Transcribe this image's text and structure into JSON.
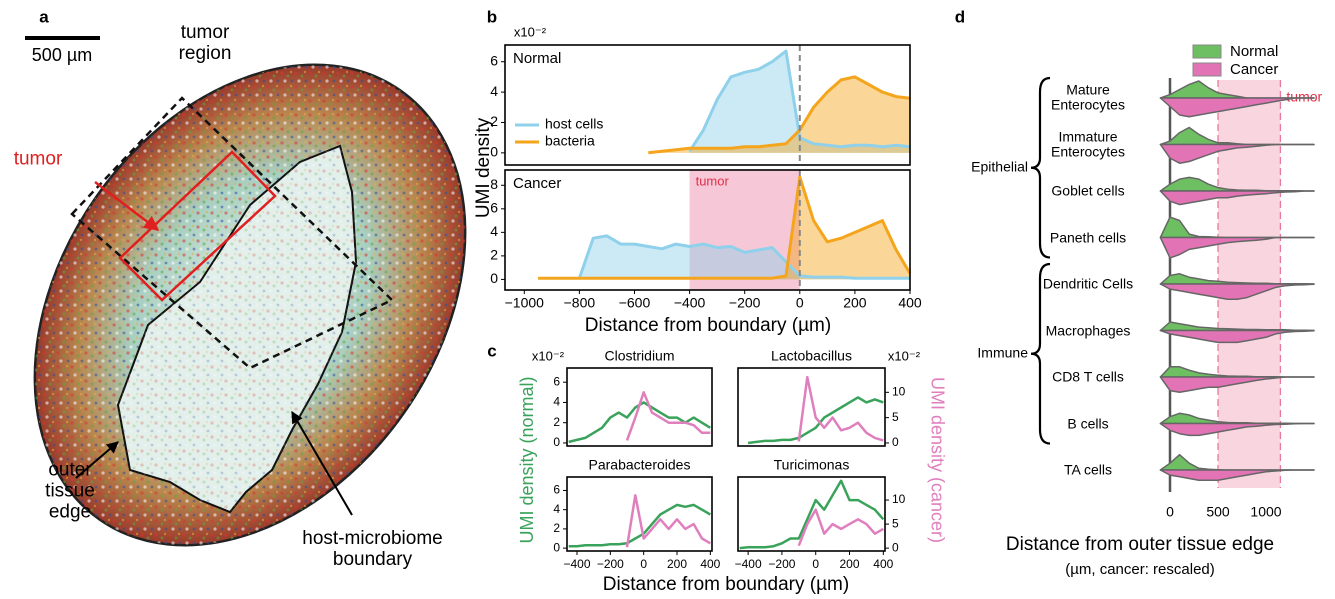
{
  "panel_labels": [
    "a",
    "b",
    "c",
    "d"
  ],
  "image_panel": {
    "scale_bar": "500 µm",
    "tumor_region": "tumor region",
    "tumor": "tumor",
    "outer_edge": "outer tissue edge",
    "boundary": "host-microbiome boundary"
  },
  "chart_data": [
    {
      "type": "area",
      "label": "Normal",
      "ylabel": "UMI density",
      "y_multiplier": "x10⁻²",
      "legend": "lower left",
      "xlim": [
        -1070,
        400
      ],
      "ylim": [
        -0.8,
        7.1
      ],
      "yticks": [
        0,
        2,
        4,
        6
      ],
      "vline": 0,
      "x": [
        -1000,
        -950,
        -900,
        -850,
        -800,
        -750,
        -700,
        -650,
        -600,
        -550,
        -500,
        -450,
        -400,
        -350,
        -300,
        -250,
        -200,
        -150,
        -100,
        -50,
        0,
        50,
        100,
        150,
        200,
        250,
        300,
        350,
        400
      ],
      "series": [
        {
          "name": "host cells",
          "color": "#8fd0ea",
          "values": [
            null,
            null,
            null,
            null,
            null,
            null,
            null,
            null,
            null,
            null,
            null,
            null,
            0.1,
            1.5,
            3.5,
            5,
            5.3,
            5.5,
            6,
            6.7,
            1,
            0.6,
            0.5,
            0.4,
            0.5,
            0.5,
            0.4,
            0.5,
            0.4
          ]
        },
        {
          "name": "bacteria",
          "color": "#f4a51c",
          "values": [
            null,
            null,
            null,
            null,
            null,
            null,
            null,
            null,
            null,
            0,
            0.1,
            0.2,
            0.3,
            0.3,
            0.3,
            0.3,
            0.4,
            0.4,
            0.5,
            0.6,
            1.5,
            3,
            4,
            4.8,
            5,
            4.5,
            4,
            3.7,
            3.6
          ]
        }
      ]
    },
    {
      "type": "area",
      "label": "Cancer",
      "xlabel": "Distance from boundary (µm)",
      "xlim": [
        -1070,
        400
      ],
      "ylim": [
        -0.9,
        9.3
      ],
      "yticks": [
        0,
        2,
        4,
        6,
        8
      ],
      "vline": 0,
      "xticks": [
        {
          "value": -1000,
          "label": "−1000"
        },
        {
          "value": -800,
          "label": "−800"
        },
        {
          "value": -600,
          "label": "−600"
        },
        {
          "value": -400,
          "label": "−400"
        },
        {
          "value": -200,
          "label": "−200"
        },
        0,
        200,
        400
      ],
      "shade": {
        "x": [
          -400,
          0
        ],
        "label": "tumor",
        "color": "#f6c7d6"
      },
      "x": [
        -1000,
        -950,
        -900,
        -850,
        -800,
        -750,
        -700,
        -650,
        -600,
        -550,
        -500,
        -450,
        -400,
        -350,
        -300,
        -250,
        -200,
        -150,
        -100,
        -50,
        0,
        50,
        100,
        150,
        200,
        250,
        300,
        350,
        400
      ],
      "series": [
        {
          "name": "host cells",
          "color": "#8fd0ea",
          "values": [
            null,
            null,
            null,
            null,
            0.1,
            3.5,
            3.7,
            3,
            3,
            2.8,
            2.6,
            3,
            2.8,
            3,
            2.7,
            2.8,
            2.3,
            2.5,
            2.7,
            1.5,
            0.3,
            0.2,
            0.2,
            0.2,
            0.1,
            0.1,
            0.1,
            0.1,
            0.1
          ]
        },
        {
          "name": "bacteria",
          "color": "#f4a51c",
          "values": [
            null,
            0.1,
            0.1,
            0.1,
            0.1,
            0.1,
            0.1,
            0.1,
            0.1,
            0.1,
            0.1,
            0.1,
            0.1,
            0.1,
            0.1,
            0.1,
            0.1,
            0.1,
            0.1,
            0.3,
            8.7,
            5,
            3.2,
            3.5,
            4,
            4.5,
            5,
            2.5,
            0.5
          ]
        }
      ]
    },
    {
      "type": "line",
      "title": "Clostridium",
      "ylabel": "UMI density (normal)",
      "y2label": "UMI density (cancer)",
      "y_multiplier": "x10⁻²",
      "y2_multiplier": "x10⁻²",
      "xlim": [
        -460,
        410
      ],
      "ylim": [
        -0.3,
        7.4
      ],
      "y2lim": [
        -0.6,
        14.8
      ],
      "yticks": [
        0,
        2,
        4,
        6
      ],
      "x": [
        -500,
        -450,
        -400,
        -350,
        -300,
        -250,
        -200,
        -150,
        -100,
        -50,
        0,
        50,
        100,
        150,
        200,
        250,
        300,
        350,
        400
      ],
      "series": [
        {
          "color": "#3aa35b",
          "values": [
            null,
            0.1,
            0.3,
            0.5,
            1,
            1.5,
            2.5,
            3,
            2.5,
            3.5,
            4,
            3.5,
            3,
            2.5,
            2.5,
            2,
            2.5,
            2,
            1.5
          ]
        },
        {
          "color": "#e07fbd",
          "axis": "y2",
          "values": [
            null,
            null,
            null,
            null,
            null,
            null,
            null,
            null,
            0.5,
            5,
            10,
            6,
            5,
            4,
            4,
            4,
            3.5,
            2,
            2
          ]
        }
      ]
    },
    {
      "type": "line",
      "title": "Lactobacillus",
      "xlim": [
        -460,
        410
      ],
      "ylim": [
        -0.3,
        7.4
      ],
      "y2lim": [
        -0.6,
        14.8
      ],
      "y2ticks": [
        0,
        5,
        10
      ],
      "x": [
        -500,
        -450,
        -400,
        -350,
        -300,
        -250,
        -200,
        -150,
        -100,
        -50,
        0,
        50,
        100,
        150,
        200,
        250,
        300,
        350,
        400
      ],
      "series": [
        {
          "color": "#3aa35b",
          "values": [
            null,
            null,
            0,
            0.1,
            0.2,
            0.2,
            0.3,
            0.3,
            0.5,
            1,
            1.5,
            2.5,
            3,
            3.5,
            4,
            4.5,
            4,
            4.3,
            4
          ]
        },
        {
          "color": "#e07fbd",
          "axis": "y2",
          "values": [
            null,
            null,
            null,
            null,
            null,
            null,
            null,
            null,
            0.3,
            13,
            5,
            3,
            5,
            2.5,
            3,
            4,
            2,
            1,
            0.5
          ]
        }
      ]
    },
    {
      "type": "line",
      "title": "Parabacteroides",
      "xlabel": "Distance from boundary (µm)",
      "xlim": [
        -460,
        410
      ],
      "ylim": [
        -0.3,
        7.4
      ],
      "y2lim": [
        -0.6,
        14.8
      ],
      "yticks": [
        0,
        2,
        4,
        6
      ],
      "xticks": [
        {
          "value": -400,
          "label": "−400"
        },
        {
          "value": -200,
          "label": "−200"
        },
        0,
        200,
        400
      ],
      "x": [
        -500,
        -450,
        -400,
        -350,
        -300,
        -250,
        -200,
        -150,
        -100,
        -50,
        0,
        50,
        100,
        150,
        200,
        250,
        300,
        350,
        400
      ],
      "series": [
        {
          "color": "#3aa35b",
          "values": [
            null,
            0.2,
            0.2,
            0.3,
            0.3,
            0.3,
            0.4,
            0.4,
            0.5,
            1,
            1.5,
            2.5,
            3.5,
            4,
            4.5,
            4.3,
            4.5,
            4,
            3.5
          ]
        },
        {
          "color": "#e07fbd",
          "axis": "y2",
          "values": [
            null,
            null,
            null,
            null,
            null,
            null,
            null,
            null,
            0.2,
            11,
            2,
            4,
            6,
            4,
            6,
            4,
            5,
            2,
            1
          ]
        }
      ]
    },
    {
      "type": "line",
      "title": "Turicimonas",
      "xlim": [
        -460,
        410
      ],
      "ylim": [
        -0.3,
        7.4
      ],
      "y2lim": [
        -0.6,
        14.8
      ],
      "y2ticks": [
        0,
        5,
        10
      ],
      "xticks": [
        {
          "value": -400,
          "label": "−400"
        },
        {
          "value": -200,
          "label": "−200"
        },
        0,
        200,
        400
      ],
      "x": [
        -500,
        -450,
        -400,
        -350,
        -300,
        -250,
        -200,
        -150,
        -100,
        -50,
        0,
        50,
        100,
        150,
        200,
        250,
        300,
        350,
        400
      ],
      "series": [
        {
          "color": "#3aa35b",
          "values": [
            null,
            0,
            0.1,
            0.1,
            0.1,
            0.2,
            0.5,
            1,
            1,
            3,
            5,
            4,
            5.5,
            7,
            5,
            5,
            4.5,
            4,
            3
          ]
        },
        {
          "color": "#e07fbd",
          "axis": "y2",
          "values": [
            null,
            null,
            null,
            null,
            null,
            null,
            null,
            null,
            0.5,
            5,
            8,
            3,
            5,
            4,
            5,
            6,
            5,
            3,
            4
          ]
        }
      ]
    },
    {
      "type": "violin",
      "xlabel": "Distance from outer tissue edge",
      "subtitle": "(µm, cancer: rescaled)",
      "legend": "top",
      "xlim": [
        -300,
        1600
      ],
      "xticks": [
        0,
        500,
        1000
      ],
      "shade": {
        "x": [
          500,
          1150
        ],
        "label": "tumor",
        "color": "#f9d5e0"
      },
      "categories": [
        "Mature Enterocytes",
        "Immature Enterocytes",
        "Goblet cells",
        "Paneth cells",
        "Dendritic Cells",
        "Macrophages",
        "CD8 T cells",
        "B cells",
        "TA cells"
      ],
      "groups": [
        {
          "label": "Epithelial",
          "span": [
            0,
            3
          ]
        },
        {
          "label": "Immune",
          "span": [
            4,
            7
          ]
        }
      ],
      "grid_x": [
        -100,
        0,
        100,
        200,
        300,
        400,
        500,
        600,
        700,
        800,
        900,
        1000,
        1100,
        1200,
        1300,
        1400,
        1500
      ],
      "series": [
        {
          "name": "Normal",
          "color": "#6dbf62",
          "densities": [
            [
              0,
              0.1,
              0.25,
              0.4,
              0.5,
              0.3,
              0.15,
              0.1,
              0.05,
              0,
              0,
              0,
              0,
              0,
              0,
              0,
              0
            ],
            [
              0,
              0.1,
              0.35,
              0.5,
              0.3,
              0.15,
              0.05,
              0.05,
              0.02,
              0,
              0,
              0,
              0,
              0,
              0,
              0,
              0
            ],
            [
              0,
              0.2,
              0.35,
              0.4,
              0.35,
              0.2,
              0.1,
              0.05,
              0.03,
              0.02,
              0.02,
              0.01,
              0.01,
              0.01,
              0.01,
              0,
              0
            ],
            [
              0,
              0.6,
              0.5,
              0.1,
              0.03,
              0.02,
              0.01,
              0,
              0,
              0,
              0,
              0,
              0,
              0,
              0,
              0,
              0
            ],
            [
              0,
              0.25,
              0.3,
              0.2,
              0.15,
              0.1,
              0.08,
              0.05,
              0.04,
              0.03,
              0.02,
              0.02,
              0.01,
              0.01,
              0.01,
              0.01,
              0
            ],
            [
              0,
              0.25,
              0.2,
              0.15,
              0.1,
              0.08,
              0.06,
              0.05,
              0.04,
              0.03,
              0.03,
              0.02,
              0.02,
              0.02,
              0.01,
              0.01,
              0
            ],
            [
              0,
              0.3,
              0.3,
              0.2,
              0.12,
              0.08,
              0.05,
              0.03,
              0.02,
              0.02,
              0.01,
              0.01,
              0.01,
              0,
              0,
              0,
              0
            ],
            [
              0,
              0.2,
              0.3,
              0.25,
              0.15,
              0.1,
              0.05,
              0.03,
              0.02,
              0.02,
              0.01,
              0.01,
              0.01,
              0.01,
              0,
              0,
              0
            ],
            [
              0,
              0.2,
              0.45,
              0.2,
              0.05,
              0.02,
              0.01,
              0,
              0,
              0,
              0,
              0,
              0,
              0,
              0,
              0,
              0
            ]
          ]
        },
        {
          "name": "Cancer",
          "color": "#e273b4",
          "densities": [
            [
              0,
              0.25,
              0.5,
              0.55,
              0.5,
              0.45,
              0.4,
              0.35,
              0.3,
              0.25,
              0.2,
              0.15,
              0.1,
              0.05,
              0,
              0,
              0
            ],
            [
              0,
              0.4,
              0.55,
              0.5,
              0.4,
              0.3,
              0.2,
              0.15,
              0.1,
              0.08,
              0.05,
              0.02,
              0,
              0,
              0,
              0,
              0
            ],
            [
              0,
              0.3,
              0.4,
              0.35,
              0.3,
              0.25,
              0.2,
              0.2,
              0.15,
              0.12,
              0.1,
              0.08,
              0.05,
              0.03,
              0.02,
              0,
              0
            ],
            [
              0,
              0.6,
              0.5,
              0.35,
              0.3,
              0.25,
              0.2,
              0.15,
              0.12,
              0.1,
              0.08,
              0.05,
              0,
              0,
              0,
              0,
              0
            ],
            [
              0,
              0.15,
              0.2,
              0.25,
              0.3,
              0.35,
              0.4,
              0.45,
              0.45,
              0.4,
              0.3,
              0.2,
              0.1,
              0.05,
              0.03,
              0.02,
              0.01
            ],
            [
              0,
              0.1,
              0.15,
              0.2,
              0.25,
              0.3,
              0.35,
              0.35,
              0.35,
              0.3,
              0.25,
              0.2,
              0.1,
              0.05,
              0.03,
              0.02,
              0.01
            ],
            [
              0,
              0.4,
              0.45,
              0.4,
              0.35,
              0.3,
              0.3,
              0.25,
              0.2,
              0.15,
              0.1,
              0.06,
              0.03,
              0,
              0,
              0,
              0
            ],
            [
              0,
              0.2,
              0.3,
              0.35,
              0.35,
              0.3,
              0.25,
              0.2,
              0.15,
              0.1,
              0.08,
              0.05,
              0.03,
              0.02,
              0.01,
              0,
              0
            ],
            [
              0,
              0.15,
              0.2,
              0.25,
              0.3,
              0.3,
              0.3,
              0.25,
              0.2,
              0.15,
              0.1,
              0.05,
              0.03,
              0.01,
              0,
              0,
              0
            ]
          ]
        }
      ]
    }
  ]
}
